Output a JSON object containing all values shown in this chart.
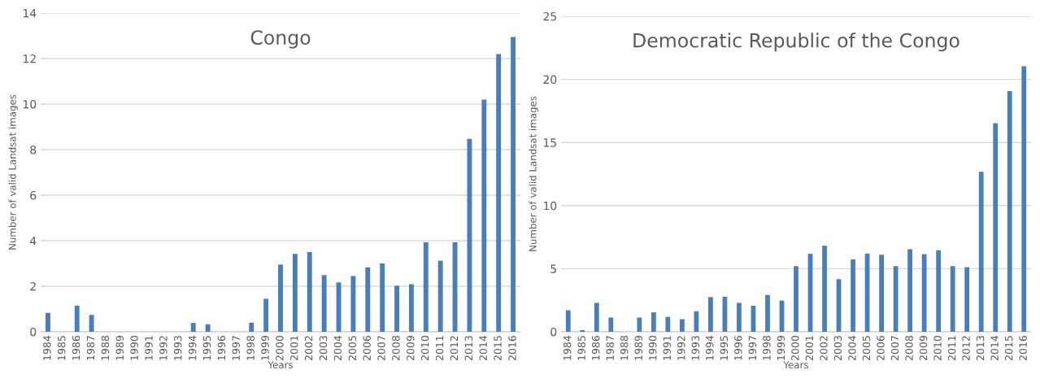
{
  "chart_data": [
    {
      "type": "bar",
      "title": "Congo",
      "xlabel": "Years",
      "ylabel": "Number of valid Landsat images",
      "categories": [
        "1984",
        "1985",
        "1986",
        "1987",
        "1988",
        "1989",
        "1990",
        "1991",
        "1992",
        "1993",
        "1994",
        "1995",
        "1996",
        "1997",
        "1998",
        "1999",
        "2000",
        "2001",
        "2002",
        "2003",
        "2004",
        "2005",
        "2006",
        "2007",
        "2008",
        "2009",
        "2010",
        "2011",
        "2012",
        "2013",
        "2014",
        "2015",
        "2016"
      ],
      "values": [
        0.83,
        0,
        1.15,
        0.74,
        0,
        0,
        0,
        0,
        0,
        0,
        0.39,
        0.33,
        0,
        0,
        0.4,
        1.45,
        2.95,
        3.42,
        3.5,
        2.49,
        2.17,
        2.45,
        2.83,
        3.0,
        2.02,
        2.09,
        3.93,
        3.12,
        3.93,
        8.47,
        10.2,
        12.2,
        12.95
      ],
      "color": "#4a7ebb",
      "ylim": [
        0,
        14
      ],
      "yticks": [
        0,
        2,
        4,
        6,
        8,
        10,
        12,
        14
      ],
      "grid": "y"
    },
    {
      "type": "bar",
      "title": "Democratic Republic of the Congo",
      "xlabel": "Years",
      "ylabel": "Number of valid Landsat images",
      "categories": [
        "1984",
        "1985",
        "1986",
        "1987",
        "1988",
        "1989",
        "1990",
        "1991",
        "1992",
        "1993",
        "1994",
        "1995",
        "1996",
        "1997",
        "1998",
        "1999",
        "2000",
        "2001",
        "2002",
        "2003",
        "2004",
        "2005",
        "2006",
        "2007",
        "2008",
        "2009",
        "2010",
        "2011",
        "2012",
        "2013",
        "2014",
        "2015",
        "2016"
      ],
      "values": [
        1.7,
        0.13,
        2.29,
        1.13,
        0,
        1.13,
        1.54,
        1.18,
        1.0,
        1.62,
        2.75,
        2.78,
        2.29,
        2.06,
        2.91,
        2.47,
        5.2,
        6.18,
        6.82,
        4.17,
        5.74,
        6.2,
        6.1,
        5.2,
        6.54,
        6.15,
        6.46,
        5.2,
        5.12,
        12.67,
        16.53,
        19.08,
        21.03
      ],
      "color": "#4a7ebb",
      "ylim": [
        0,
        25
      ],
      "yticks": [
        0,
        5,
        10,
        15,
        20,
        25
      ],
      "grid": "y"
    }
  ]
}
